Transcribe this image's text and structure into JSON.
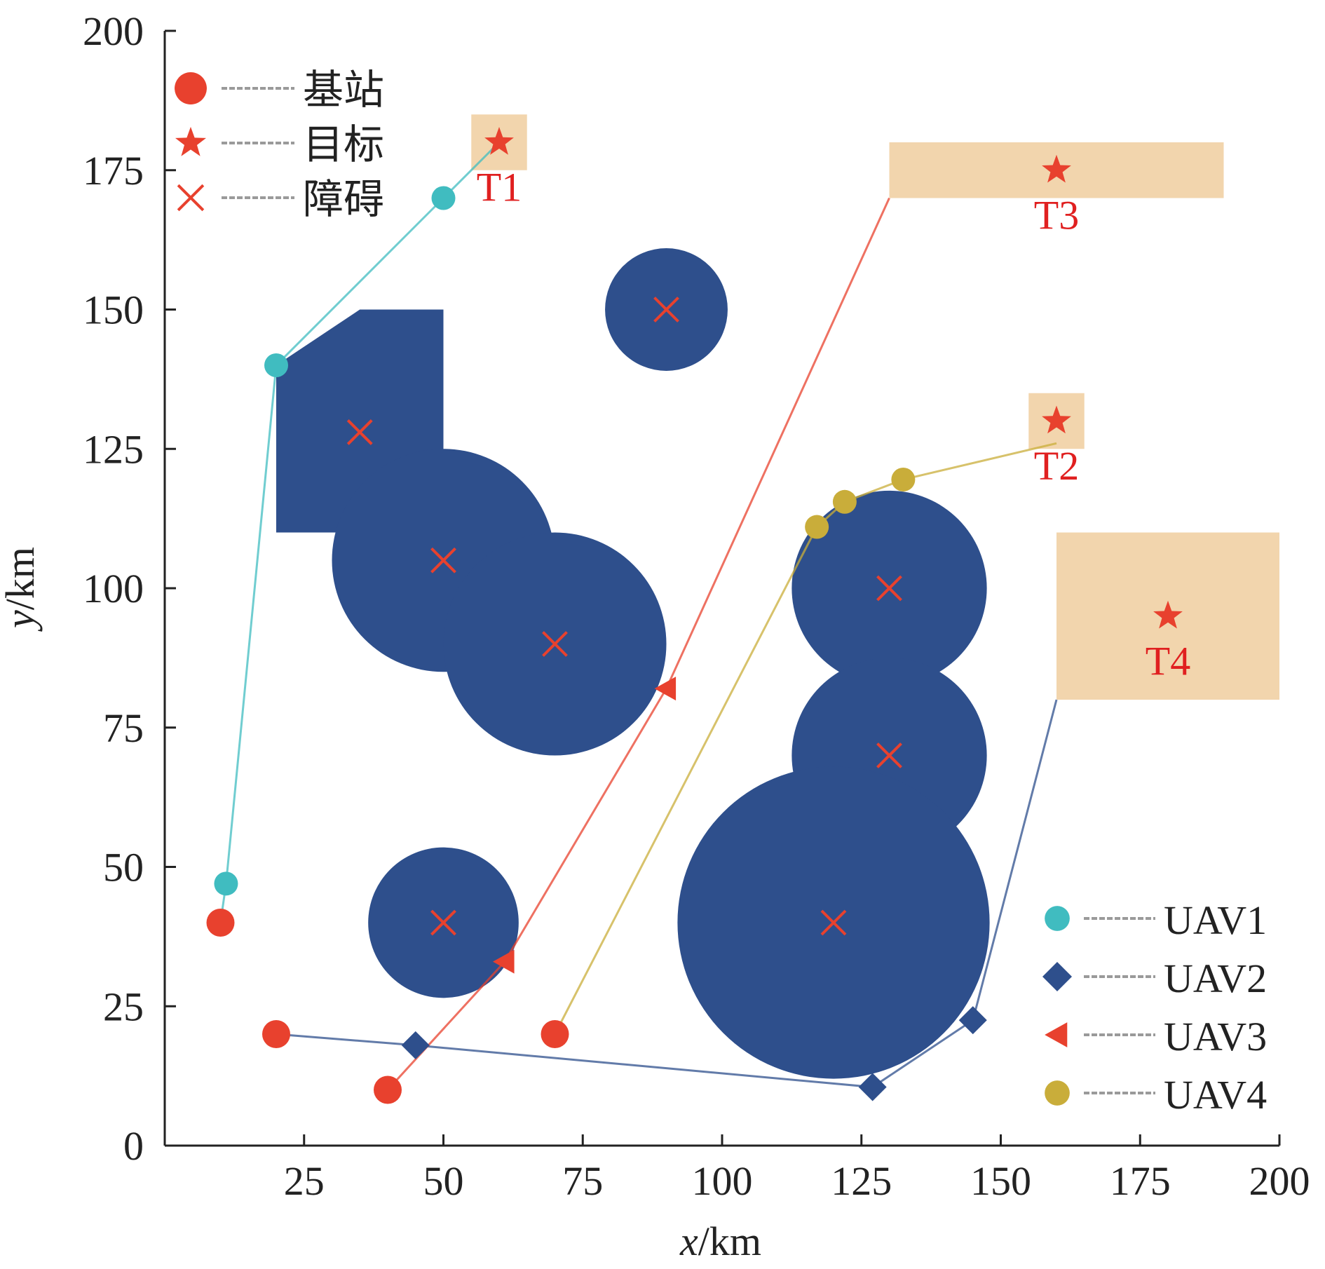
{
  "chart_data": {
    "type": "scatter",
    "title": "",
    "xlabel": "x/km",
    "ylabel": "y/km",
    "xlim": [
      0,
      200
    ],
    "ylim": [
      0,
      200
    ],
    "xticks": [
      25,
      50,
      75,
      100,
      125,
      150,
      175,
      200
    ],
    "yticks": [
      0,
      25,
      50,
      75,
      100,
      125,
      150,
      175,
      200
    ],
    "grid": false,
    "colors": {
      "base": "#e8412e",
      "target": "#e8412e",
      "obstacle_fill": "#2e4f8c",
      "obstacle_mark": "#e8412e",
      "target_area": "#f2d5ad",
      "target_label": "#e02020",
      "uav1": "#40bcc0",
      "uav2": "#2e4f8c",
      "uav3": "#e8412e",
      "uav4": "#c9ad3a"
    },
    "legend_top": {
      "placement": "top-left",
      "entries": [
        {
          "marker": "circle",
          "label": "基站"
        },
        {
          "marker": "star",
          "label": "目标"
        },
        {
          "marker": "cross",
          "label": "障碍"
        }
      ]
    },
    "legend_bottom": {
      "placement": "bottom-right",
      "entries": [
        {
          "marker": "circle",
          "series": "uav1",
          "label": "UAV1"
        },
        {
          "marker": "diamond",
          "series": "uav2",
          "label": "UAV2"
        },
        {
          "marker": "triangle-left",
          "series": "uav3",
          "label": "UAV3"
        },
        {
          "marker": "circle",
          "series": "uav4",
          "label": "UAV4"
        }
      ]
    },
    "obstacle_polygon": [
      [
        20,
        110
      ],
      [
        20,
        140
      ],
      [
        35,
        150
      ],
      [
        50,
        150
      ],
      [
        50,
        110
      ]
    ],
    "obstacles": [
      {
        "x": 35,
        "y": 128,
        "r": 0
      },
      {
        "x": 50,
        "y": 105,
        "r": 20
      },
      {
        "x": 70,
        "y": 90,
        "r": 20
      },
      {
        "x": 90,
        "y": 150,
        "r": 11
      },
      {
        "x": 50,
        "y": 40,
        "r": 13.5
      },
      {
        "x": 130,
        "y": 100,
        "r": 17.5
      },
      {
        "x": 130,
        "y": 70,
        "r": 17.5
      },
      {
        "x": 120,
        "y": 40,
        "r": 28
      }
    ],
    "bases": [
      {
        "x": 10,
        "y": 40
      },
      {
        "x": 20,
        "y": 20
      },
      {
        "x": 40,
        "y": 10
      },
      {
        "x": 70,
        "y": 20
      }
    ],
    "targets": [
      {
        "label": "T1",
        "x": 60,
        "y": 180,
        "area": [
          55,
          175,
          65,
          185
        ],
        "label_pos": [
          60,
          172
        ]
      },
      {
        "label": "T3",
        "x": 160,
        "y": 175,
        "area": [
          130,
          170,
          190,
          180
        ],
        "label_pos": [
          160,
          167
        ]
      },
      {
        "label": "T2",
        "x": 160,
        "y": 130,
        "area": [
          155,
          125,
          165,
          135
        ],
        "label_pos": [
          160,
          122
        ]
      },
      {
        "label": "T4",
        "x": 180,
        "y": 95,
        "area": [
          160,
          80,
          200,
          110
        ],
        "label_pos": [
          180,
          87
        ]
      }
    ],
    "series": [
      {
        "key": "uav1",
        "marker": "circle",
        "path": [
          [
            10,
            40
          ],
          [
            11,
            47
          ],
          [
            20,
            140
          ],
          [
            50,
            170
          ],
          [
            60,
            180
          ]
        ],
        "markers": [
          [
            11,
            47
          ],
          [
            20,
            140
          ],
          [
            50,
            170
          ]
        ]
      },
      {
        "key": "uav2",
        "marker": "diamond",
        "path": [
          [
            20,
            20
          ],
          [
            45,
            18
          ],
          [
            127,
            10.5
          ],
          [
            145,
            22.5
          ],
          [
            160,
            80
          ]
        ],
        "markers": [
          [
            45,
            18
          ],
          [
            127,
            10.5
          ],
          [
            145,
            22.5
          ]
        ]
      },
      {
        "key": "uav3",
        "marker": "triangle-left",
        "path": [
          [
            40,
            10
          ],
          [
            61,
            33
          ],
          [
            90,
            82
          ],
          [
            130,
            170
          ]
        ],
        "markers": [
          [
            61,
            33
          ],
          [
            90,
            82
          ]
        ]
      },
      {
        "key": "uav4",
        "marker": "circle",
        "path": [
          [
            70,
            20
          ],
          [
            117,
            111
          ],
          [
            122,
            115.5
          ],
          [
            132.5,
            119.5
          ],
          [
            160,
            126
          ]
        ],
        "markers": [
          [
            117,
            111
          ],
          [
            122,
            115.5
          ],
          [
            132.5,
            119.5
          ]
        ]
      }
    ]
  }
}
